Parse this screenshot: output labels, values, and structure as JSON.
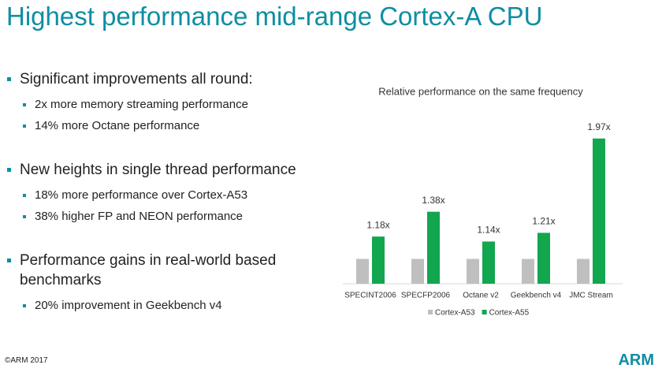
{
  "title": "Highest performance mid-range Cortex-A CPU",
  "bullets": [
    {
      "text": "Significant improvements all round:",
      "sub": [
        "2x more memory streaming performance",
        "14% more Octane performance"
      ]
    },
    {
      "text": "New heights in single thread performance",
      "sub": [
        "18% more performance over Cortex-A53",
        "38% higher FP and NEON performance"
      ]
    },
    {
      "text": "Performance gains in real-world based benchmarks",
      "sub": [
        "20% improvement in Geekbench v4"
      ]
    }
  ],
  "footer": "©ARM 2017",
  "logo": "ARM",
  "chart_data": {
    "type": "bar",
    "title": "Relative performance on the same frequency",
    "categories": [
      "SPECINT2006",
      "SPECFP2006",
      "Octane v2",
      "Geekbench v4",
      "JMC Stream"
    ],
    "series": [
      {
        "name": "Cortex-A53",
        "color": "#bfbfbf",
        "values": [
          1,
          1,
          1,
          1,
          1
        ]
      },
      {
        "name": "Cortex-A55",
        "color": "#12a64f",
        "values": [
          1.18,
          1.38,
          1.14,
          1.21,
          1.97
        ],
        "value_labels": [
          "1.18x",
          "1.38x",
          "1.14x",
          "1.21x",
          "1.97x"
        ]
      }
    ],
    "ylim": [
      0.8,
      2.0
    ]
  }
}
